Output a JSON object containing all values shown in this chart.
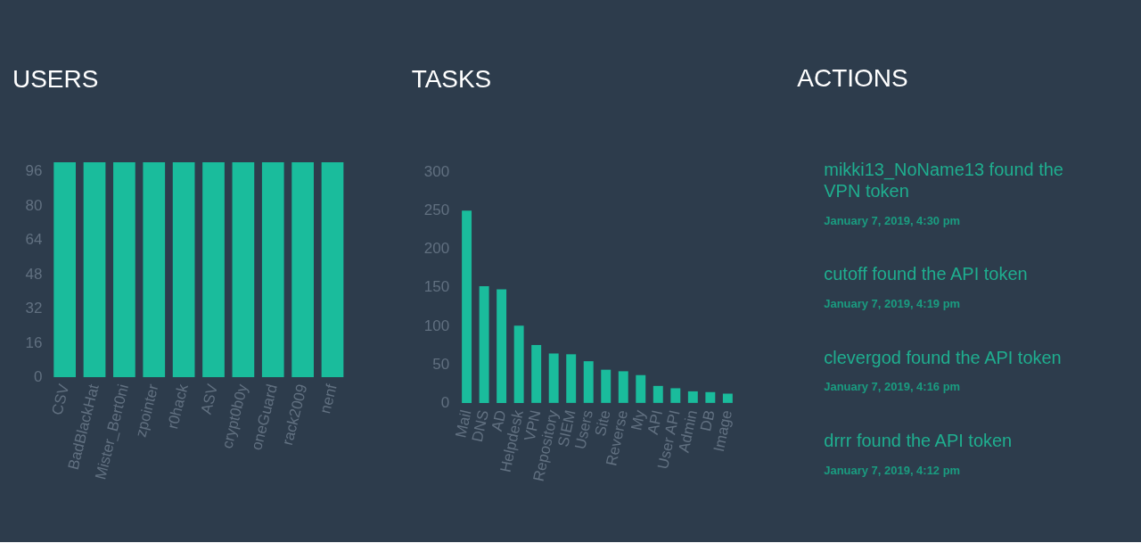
{
  "chart_data": [
    {
      "type": "bar",
      "title": "USERS",
      "categories": [
        "CSV",
        "BadBlackHat",
        "Mister_Bert0ni",
        "zpointer",
        "r0hack",
        "ASV",
        "crypt0b0y",
        "oneGuard",
        "rack2009",
        "nenf"
      ],
      "values": [
        100,
        100,
        100,
        100,
        100,
        100,
        100,
        100,
        100,
        100
      ],
      "color": "#1abc9c",
      "ylim": [
        0,
        100
      ],
      "yticks": [
        0,
        16,
        32,
        48,
        64,
        80,
        96
      ],
      "grid": false
    },
    {
      "type": "bar",
      "title": "TASKS",
      "categories": [
        "Mail",
        "DNS",
        "AD",
        "Helpdesk",
        "VPN",
        "Repository",
        "SIEM",
        "Users",
        "Site",
        "Reverse",
        "My",
        "API",
        "User API",
        "Admin",
        "DB",
        "Image"
      ],
      "values": [
        249,
        151,
        147,
        100,
        75,
        64,
        63,
        54,
        43,
        41,
        36,
        22,
        19,
        15,
        14,
        12
      ],
      "color": "#1abc9c",
      "ylim": [
        0,
        300
      ],
      "yticks": [
        0,
        50,
        100,
        150,
        200,
        250,
        300
      ],
      "grid": false
    },
    {
      "type": "other",
      "title": "ACTIONS",
      "annotations": [
        "mikki13_NoName13 found the VPN token",
        "January 7, 2019, 4:30 pm",
        "cutoff found the API token",
        "January 7, 2019, 4:19 pm",
        "clevergod found the API token",
        "January 7, 2019, 4:16 pm",
        "drrr found the API token",
        "January 7, 2019, 4:12 pm"
      ]
    }
  ]
}
